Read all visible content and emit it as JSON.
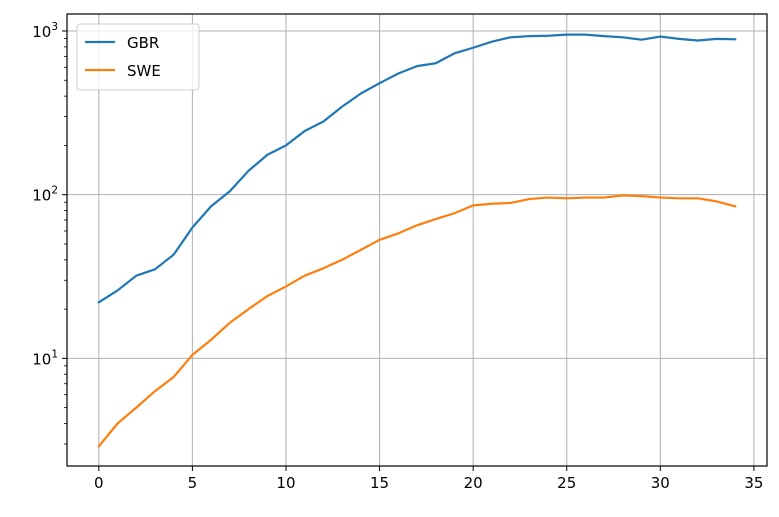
{
  "chart_data": {
    "type": "line",
    "title": "",
    "xlabel": "",
    "ylabel": "",
    "x": [
      0,
      1,
      2,
      3,
      4,
      5,
      6,
      7,
      8,
      9,
      10,
      11,
      12,
      13,
      14,
      15,
      16,
      17,
      18,
      19,
      20,
      21,
      22,
      23,
      24,
      25,
      26,
      27,
      28,
      29,
      30,
      31,
      32,
      33,
      34
    ],
    "series": [
      {
        "name": "GBR",
        "color": "#1f77b4",
        "values": [
          22,
          26,
          32,
          35,
          43,
          63,
          85,
          105,
          140,
          175,
          200,
          245,
          280,
          345,
          415,
          480,
          550,
          610,
          635,
          730,
          790,
          860,
          915,
          930,
          935,
          950,
          950,
          930,
          915,
          885,
          925,
          895,
          875,
          895,
          890
        ]
      },
      {
        "name": "SWE",
        "color": "#ff7f0e",
        "values": [
          2.9,
          4.0,
          5.0,
          6.3,
          7.7,
          10.5,
          13.0,
          16.5,
          20.0,
          24.0,
          27.5,
          32.0,
          35.5,
          40.0,
          46.0,
          53.0,
          58.0,
          65.0,
          71.0,
          77.0,
          86.0,
          88.0,
          89.0,
          94.0,
          96.0,
          95.0,
          96.0,
          96.0,
          99.0,
          98.0,
          96.0,
          95.0,
          95.0,
          91.0,
          85.0
        ]
      }
    ],
    "xlim": [
      -1.7,
      35.7
    ],
    "ylim": [
      2.2,
      1270
    ],
    "yscale": "log",
    "xticks": [
      0,
      5,
      10,
      15,
      20,
      25,
      30,
      35
    ],
    "yticks": [
      {
        "value": 10,
        "base": "10",
        "exp": "1"
      },
      {
        "value": 100,
        "base": "10",
        "exp": "2"
      },
      {
        "value": 1000,
        "base": "10",
        "exp": "3"
      }
    ],
    "grid": true,
    "legend_position": "top-left"
  }
}
